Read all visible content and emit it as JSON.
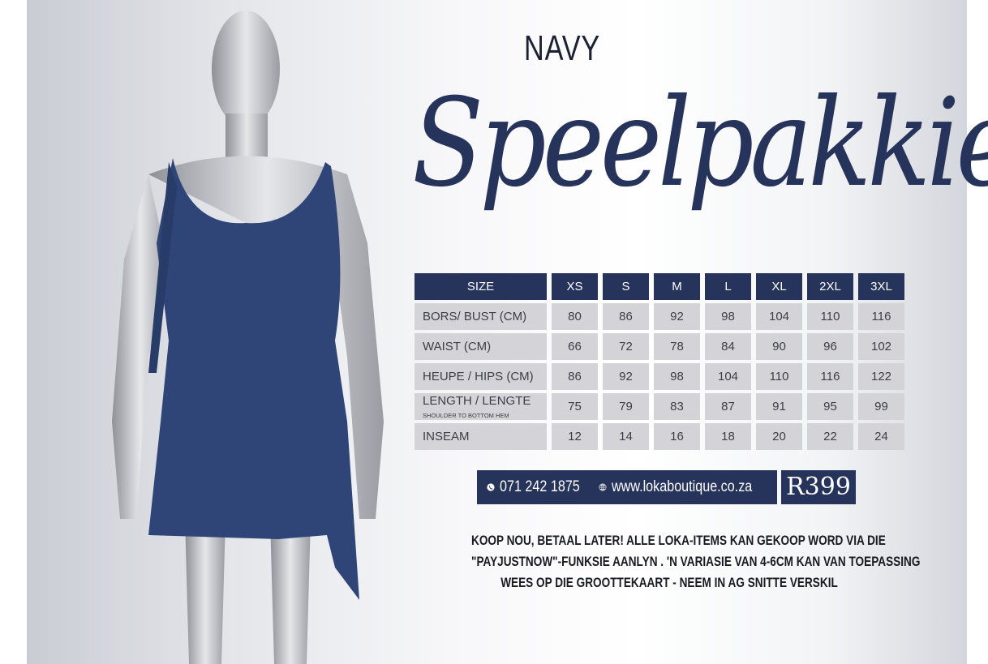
{
  "title": {
    "color_word": "NAVY",
    "product": "Speelpakkie"
  },
  "table": {
    "headers": [
      "SIZE",
      "XS",
      "S",
      "M",
      "L",
      "XL",
      "2XL",
      "3XL"
    ],
    "rows": [
      {
        "label": "BORS/ BUST (CM)",
        "values": [
          "80",
          "86",
          "92",
          "98",
          "104",
          "110",
          "116"
        ]
      },
      {
        "label": "WAIST (CM)",
        "values": [
          "66",
          "72",
          "78",
          "84",
          "90",
          "96",
          "102"
        ]
      },
      {
        "label": "HEUPE / HIPS (CM)",
        "values": [
          "86",
          "92",
          "98",
          "104",
          "110",
          "116",
          "122"
        ]
      },
      {
        "label": "LENGTH / LENGTE",
        "sublabel": "SHOULDER TO BOTTOM HEM",
        "values": [
          "75",
          "79",
          "83",
          "87",
          "91",
          "95",
          "99"
        ]
      },
      {
        "label": "INSEAM",
        "values": [
          "12",
          "14",
          "16",
          "18",
          "20",
          "22",
          "24"
        ]
      }
    ]
  },
  "contact": {
    "phone_icon": "phone-icon",
    "phone": "071 242 1875",
    "web_icon": "globe-icon",
    "website": "www.lokaboutique.co.za"
  },
  "price": "R399",
  "note": [
    "KOOP NOU, BETAAL LATER! ALLE LOKA-ITEMS KAN GEKOOP WORD VIA DIE",
    "\"PAYJUSTNOW\"-FUNKSIE AANLYN . 'N VARIASIE VAN 4-6CM KAN VAN TOEPASSING",
    "WEES OP DIE GROOTTEKAART - NEEM IN AG SNITTE VERSKIL"
  ],
  "colors": {
    "navy": "#26335a",
    "cell": "#d3d3d8"
  }
}
